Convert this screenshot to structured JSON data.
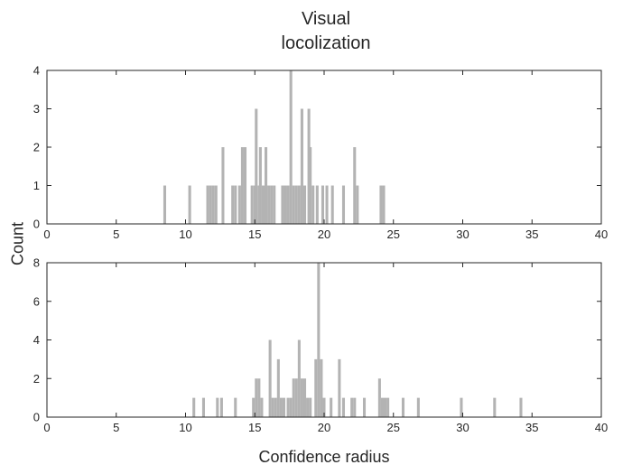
{
  "chart_data": [
    {
      "type": "bar",
      "title_lines": [
        "Visual",
        "locolization"
      ],
      "xlabel": "Confidence radius",
      "ylabel": "Count",
      "xlim": [
        0,
        40
      ],
      "ylim": [
        0,
        4
      ],
      "xticks": [
        0,
        5,
        10,
        15,
        20,
        25,
        30,
        35,
        40
      ],
      "yticks": [
        0,
        1,
        2,
        3,
        4
      ],
      "bar_color": "#b3b3b3",
      "bin_width": 0.2,
      "bins": [
        {
          "x": 8.5,
          "count": 1
        },
        {
          "x": 10.3,
          "count": 1
        },
        {
          "x": 11.6,
          "count": 1
        },
        {
          "x": 11.8,
          "count": 1
        },
        {
          "x": 12.0,
          "count": 1
        },
        {
          "x": 12.2,
          "count": 1
        },
        {
          "x": 12.7,
          "count": 2
        },
        {
          "x": 13.4,
          "count": 1
        },
        {
          "x": 13.6,
          "count": 1
        },
        {
          "x": 13.9,
          "count": 1
        },
        {
          "x": 14.1,
          "count": 2
        },
        {
          "x": 14.3,
          "count": 2
        },
        {
          "x": 14.8,
          "count": 1
        },
        {
          "x": 15.0,
          "count": 1
        },
        {
          "x": 15.1,
          "count": 3
        },
        {
          "x": 15.3,
          "count": 1
        },
        {
          "x": 15.4,
          "count": 2
        },
        {
          "x": 15.6,
          "count": 1
        },
        {
          "x": 15.8,
          "count": 2
        },
        {
          "x": 16.0,
          "count": 1
        },
        {
          "x": 16.2,
          "count": 1
        },
        {
          "x": 16.4,
          "count": 1
        },
        {
          "x": 17.0,
          "count": 1
        },
        {
          "x": 17.2,
          "count": 1
        },
        {
          "x": 17.4,
          "count": 1
        },
        {
          "x": 17.6,
          "count": 4
        },
        {
          "x": 17.8,
          "count": 1
        },
        {
          "x": 18.0,
          "count": 1
        },
        {
          "x": 18.2,
          "count": 1
        },
        {
          "x": 18.4,
          "count": 3
        },
        {
          "x": 18.6,
          "count": 1
        },
        {
          "x": 18.9,
          "count": 3
        },
        {
          "x": 19.0,
          "count": 2
        },
        {
          "x": 19.2,
          "count": 1
        },
        {
          "x": 19.5,
          "count": 1
        },
        {
          "x": 19.9,
          "count": 1
        },
        {
          "x": 20.2,
          "count": 1
        },
        {
          "x": 20.6,
          "count": 1
        },
        {
          "x": 21.4,
          "count": 1
        },
        {
          "x": 22.2,
          "count": 2
        },
        {
          "x": 22.4,
          "count": 1
        },
        {
          "x": 24.1,
          "count": 1
        },
        {
          "x": 24.3,
          "count": 1
        }
      ]
    },
    {
      "type": "bar",
      "xlim": [
        0,
        40
      ],
      "ylim": [
        0,
        8
      ],
      "xticks": [
        0,
        5,
        10,
        15,
        20,
        25,
        30,
        35,
        40
      ],
      "yticks": [
        0,
        2,
        4,
        6,
        8
      ],
      "bar_color": "#b3b3b3",
      "bin_width": 0.2,
      "bins": [
        {
          "x": 10.6,
          "count": 1
        },
        {
          "x": 11.3,
          "count": 1
        },
        {
          "x": 12.3,
          "count": 1
        },
        {
          "x": 12.6,
          "count": 1
        },
        {
          "x": 13.6,
          "count": 1
        },
        {
          "x": 14.9,
          "count": 1
        },
        {
          "x": 15.1,
          "count": 2
        },
        {
          "x": 15.3,
          "count": 2
        },
        {
          "x": 15.5,
          "count": 1
        },
        {
          "x": 16.1,
          "count": 4
        },
        {
          "x": 16.3,
          "count": 1
        },
        {
          "x": 16.5,
          "count": 1
        },
        {
          "x": 16.7,
          "count": 3
        },
        {
          "x": 16.9,
          "count": 1
        },
        {
          "x": 17.1,
          "count": 1
        },
        {
          "x": 17.4,
          "count": 1
        },
        {
          "x": 17.6,
          "count": 1
        },
        {
          "x": 17.8,
          "count": 2
        },
        {
          "x": 18.0,
          "count": 2
        },
        {
          "x": 18.2,
          "count": 4
        },
        {
          "x": 18.4,
          "count": 2
        },
        {
          "x": 18.6,
          "count": 2
        },
        {
          "x": 18.8,
          "count": 1
        },
        {
          "x": 19.0,
          "count": 1
        },
        {
          "x": 19.4,
          "count": 3
        },
        {
          "x": 19.6,
          "count": 8
        },
        {
          "x": 19.8,
          "count": 3
        },
        {
          "x": 20.0,
          "count": 1
        },
        {
          "x": 20.5,
          "count": 1
        },
        {
          "x": 21.1,
          "count": 3
        },
        {
          "x": 21.4,
          "count": 1
        },
        {
          "x": 22.0,
          "count": 1
        },
        {
          "x": 22.2,
          "count": 1
        },
        {
          "x": 22.9,
          "count": 1
        },
        {
          "x": 24.0,
          "count": 2
        },
        {
          "x": 24.2,
          "count": 1
        },
        {
          "x": 24.4,
          "count": 1
        },
        {
          "x": 24.6,
          "count": 1
        },
        {
          "x": 25.7,
          "count": 1
        },
        {
          "x": 26.8,
          "count": 1
        },
        {
          "x": 29.9,
          "count": 1
        },
        {
          "x": 32.3,
          "count": 1
        },
        {
          "x": 34.2,
          "count": 1
        }
      ]
    }
  ]
}
